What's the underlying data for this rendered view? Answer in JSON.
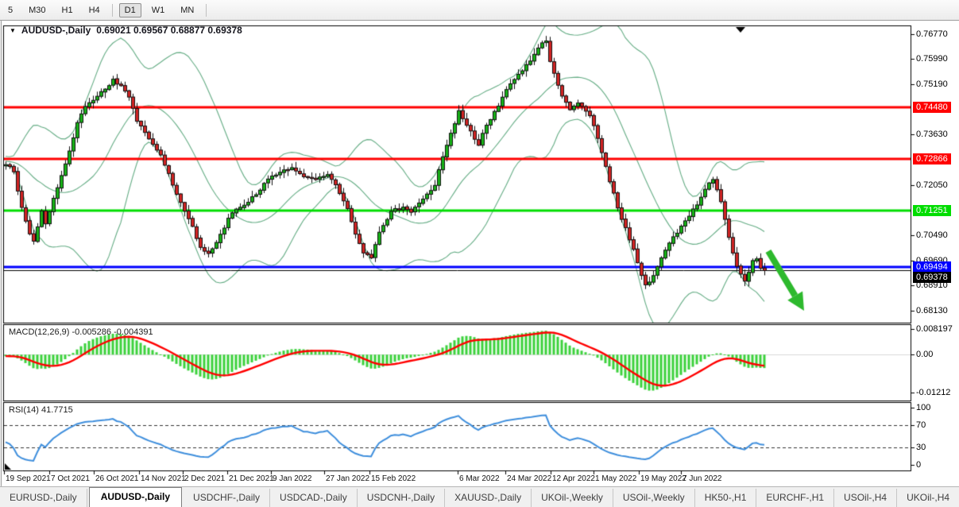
{
  "toolbar": {
    "buttons": [
      {
        "label": "5",
        "active": false
      },
      {
        "label": "M30",
        "active": false
      },
      {
        "label": "H1",
        "active": false
      },
      {
        "label": "H4",
        "active": false
      },
      {
        "label": "D1",
        "active": true
      },
      {
        "label": "W1",
        "active": false
      },
      {
        "label": "MN",
        "active": false
      }
    ]
  },
  "icons": {
    "dropdown": "▼",
    "scroll_left": "◄",
    "scroll_right": "►"
  },
  "main_chart": {
    "title": {
      "symbol": "AUDUSD-,Daily",
      "ohlc": "0.69021 0.69567 0.68877 0.69378"
    }
  },
  "chart_data": {
    "type": "candlestick",
    "symbol": "AUDUSD-,Daily",
    "timeframe": "Daily",
    "ohlc_display": {
      "open": "0.69021",
      "high": "0.69567",
      "low": "0.68877",
      "close": "0.69378"
    },
    "price_axis": {
      "min": 0.6775,
      "max": 0.7701,
      "ticks": [
        {
          "label": "0.76770",
          "price": 0.7677
        },
        {
          "label": "0.75990",
          "price": 0.7599
        },
        {
          "label": "0.75190",
          "price": 0.7519
        },
        {
          "label": "0.73630",
          "price": 0.7363
        },
        {
          "label": "0.72050",
          "price": 0.7205
        },
        {
          "label": "0.70490",
          "price": 0.7049
        },
        {
          "label": "0.69690",
          "price": 0.6969
        },
        {
          "label": "0.68910",
          "price": 0.6891
        },
        {
          "label": "0.68130",
          "price": 0.6813
        }
      ]
    },
    "horizontal_lines": [
      {
        "label": "0.74480",
        "price": 0.7448,
        "color": "#ff0000",
        "width": 3,
        "kind": "resistance"
      },
      {
        "label": "0.72866",
        "price": 0.72866,
        "color": "#ff0000",
        "width": 3,
        "kind": "resistance"
      },
      {
        "label": "0.71251",
        "price": 0.71251,
        "color": "#00dd00",
        "width": 3,
        "kind": "support"
      },
      {
        "label": "0.69494",
        "price": 0.69494,
        "color": "#0000ff",
        "width": 3,
        "kind": "support"
      },
      {
        "label": "0.69378",
        "price": 0.69378,
        "color": "#000000",
        "width": 1,
        "kind": "current-price"
      }
    ],
    "candles": {
      "count": 192,
      "up_color": "#17b217",
      "down_color": "#d32424",
      "outline_color": "#101010",
      "close_anchors": [
        [
          0,
          0.727
        ],
        [
          2,
          0.7245
        ],
        [
          4,
          0.7135
        ],
        [
          6,
          0.7052
        ],
        [
          7,
          0.703
        ],
        [
          9,
          0.7125
        ],
        [
          10,
          0.7085
        ],
        [
          12,
          0.7165
        ],
        [
          14,
          0.7235
        ],
        [
          16,
          0.731
        ],
        [
          18,
          0.74
        ],
        [
          20,
          0.745
        ],
        [
          22,
          0.747
        ],
        [
          25,
          0.7505
        ],
        [
          27,
          0.7535
        ],
        [
          29,
          0.7515
        ],
        [
          31,
          0.748
        ],
        [
          33,
          0.7405
        ],
        [
          36,
          0.735
        ],
        [
          39,
          0.73
        ],
        [
          41,
          0.724
        ],
        [
          44,
          0.715
        ],
        [
          47,
          0.7075
        ],
        [
          49,
          0.701
        ],
        [
          51,
          0.6992
        ],
        [
          53,
          0.7025
        ],
        [
          56,
          0.71
        ],
        [
          58,
          0.713
        ],
        [
          61,
          0.715
        ],
        [
          64,
          0.719
        ],
        [
          66,
          0.7225
        ],
        [
          69,
          0.7245
        ],
        [
          72,
          0.7258
        ],
        [
          75,
          0.7232
        ],
        [
          78,
          0.7222
        ],
        [
          81,
          0.7238
        ],
        [
          83,
          0.7205
        ],
        [
          86,
          0.713
        ],
        [
          88,
          0.7052
        ],
        [
          90,
          0.6992
        ],
        [
          92,
          0.6976
        ],
        [
          94,
          0.7058
        ],
        [
          97,
          0.7122
        ],
        [
          100,
          0.7136
        ],
        [
          102,
          0.712
        ],
        [
          105,
          0.7162
        ],
        [
          108,
          0.7205
        ],
        [
          110,
          0.7292
        ],
        [
          113,
          0.7398
        ],
        [
          114,
          0.7438
        ],
        [
          116,
          0.7392
        ],
        [
          119,
          0.733
        ],
        [
          121,
          0.7392
        ],
        [
          124,
          0.7452
        ],
        [
          126,
          0.7502
        ],
        [
          129,
          0.7552
        ],
        [
          132,
          0.7592
        ],
        [
          134,
          0.7632
        ],
        [
          136,
          0.7656
        ],
        [
          137,
          0.7592
        ],
        [
          140,
          0.7482
        ],
        [
          142,
          0.744
        ],
        [
          144,
          0.7462
        ],
        [
          147,
          0.742
        ],
        [
          149,
          0.7352
        ],
        [
          151,
          0.7262
        ],
        [
          154,
          0.7132
        ],
        [
          156,
          0.7072
        ],
        [
          159,
          0.6962
        ],
        [
          161,
          0.6892
        ],
        [
          163,
          0.6922
        ],
        [
          166,
          0.7002
        ],
        [
          168,
          0.7042
        ],
        [
          171,
          0.7092
        ],
        [
          174,
          0.7142
        ],
        [
          176,
          0.7192
        ],
        [
          178,
          0.7222
        ],
        [
          180,
          0.7152
        ],
        [
          182,
          0.7042
        ],
        [
          184,
          0.6952
        ],
        [
          186,
          0.6905
        ],
        [
          188,
          0.6968
        ],
        [
          189,
          0.6975
        ],
        [
          190,
          0.6945
        ],
        [
          191,
          0.69378
        ]
      ]
    },
    "bollinger": {
      "period": 20,
      "deviation": 2,
      "color": "#65ad85"
    },
    "macd": {
      "label": "MACD(12,26,9)",
      "values_display": "-0.005286 -0.004391",
      "fast": 12,
      "slow": 26,
      "signal": 9,
      "histogram_color": "#3cd23c",
      "signal_color": "#ff0000",
      "axis_ticks": [
        {
          "label": "0.008197",
          "value": 0.008197
        },
        {
          "label": "0.00",
          "value": 0
        },
        {
          "label": "-0.01212",
          "value": -0.01212
        }
      ]
    },
    "rsi": {
      "label": "RSI(14)",
      "value_display": "41.7715",
      "period": 14,
      "line_color": "#3f8fdd",
      "axis_ticks": [
        {
          "label": "100",
          "value": 100
        },
        {
          "label": "70",
          "value": 70,
          "dashed": true
        },
        {
          "label": "30",
          "value": 30,
          "dashed": true
        },
        {
          "label": "0",
          "value": 0
        }
      ]
    },
    "x_axis": {
      "labels": [
        "19 Sep 2021",
        "7 Oct 2021",
        "26 Oct 2021",
        "14 Nov 2021",
        "2 Dec 2021",
        "21 Dec 2021",
        "9 Jan 2022",
        "27 Jan 2022",
        "15 Feb 2022",
        "6 Mar 2022",
        "24 Mar 2022",
        "12 Apr 2022",
        "1 May 2022",
        "19 May 2022",
        "7 Jun 2022"
      ],
      "positions": [
        5,
        62,
        118,
        175,
        230,
        286,
        341,
        408,
        465,
        576,
        636,
        693,
        747,
        804,
        857
      ]
    },
    "annotations": [
      {
        "type": "arrow",
        "color": "#2db92d",
        "direction": "down-right",
        "from_price": 0.6985,
        "to_price": 0.6835,
        "meaning": "bearish projection"
      }
    ]
  },
  "tabs": {
    "items": [
      {
        "label": "EURUSD-,Daily",
        "active": false
      },
      {
        "label": "AUDUSD-,Daily",
        "active": true
      },
      {
        "label": "USDCHF-,Daily",
        "active": false
      },
      {
        "label": "USDCAD-,Daily",
        "active": false
      },
      {
        "label": "USDCNH-,Daily",
        "active": false
      },
      {
        "label": "XAUUSD-,Daily",
        "active": false
      },
      {
        "label": "UKOil-,Weekly",
        "active": false
      },
      {
        "label": "USOil-,Weekly",
        "active": false
      },
      {
        "label": "HK50-,H1",
        "active": false
      },
      {
        "label": "EURCHF-,H1",
        "active": false
      },
      {
        "label": "USOil-,H4",
        "active": false
      },
      {
        "label": "UKOil-,H4",
        "active": false
      }
    ]
  }
}
